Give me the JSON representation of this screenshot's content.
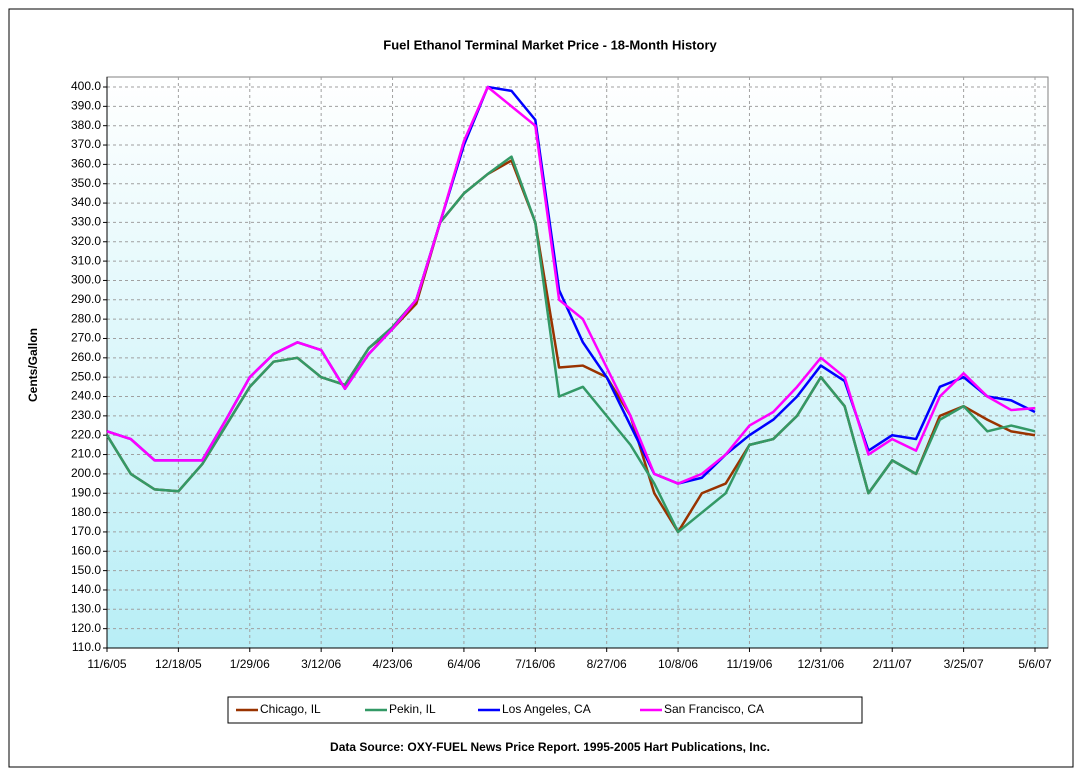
{
  "chart_data": {
    "type": "line",
    "title": "Fuel Ethanol Terminal Market Price - 18-Month History",
    "y_label": "Cents/Gallon",
    "source": "Data Source: OXY-FUEL News Price Report. 1995-2005 Hart Publications, Inc.",
    "categories": [
      "11/6/05",
      null,
      null,
      "12/18/05",
      null,
      null,
      "1/29/06",
      null,
      null,
      "3/12/06",
      null,
      null,
      "4/23/06",
      null,
      null,
      "6/4/06",
      null,
      null,
      "7/16/06",
      null,
      null,
      "8/27/06",
      null,
      null,
      "10/8/06",
      null,
      null,
      "11/19/06",
      null,
      null,
      "12/31/06",
      null,
      null,
      "2/11/07",
      null,
      null,
      "3/25/07",
      null,
      null,
      "5/6/07"
    ],
    "series": [
      {
        "name": "Chicago, IL",
        "color": "#993300",
        "values": [
          220,
          200,
          192,
          191,
          205,
          225,
          245,
          258,
          260,
          250,
          246,
          265,
          275,
          288,
          330,
          345,
          355,
          362,
          330,
          255,
          256,
          250,
          230,
          190,
          170,
          190,
          195,
          215,
          218,
          230,
          250,
          235,
          190,
          207,
          200,
          230,
          235,
          228,
          222,
          220
        ]
      },
      {
        "name": "Pekin, IL",
        "color": "#339966",
        "values": [
          220,
          200,
          192,
          191,
          205,
          225,
          245,
          258,
          260,
          250,
          246,
          265,
          276,
          290,
          330,
          345,
          355,
          364,
          330,
          240,
          245,
          230,
          215,
          195,
          170,
          180,
          190,
          215,
          218,
          230,
          250,
          235,
          190,
          207,
          200,
          228,
          235,
          222,
          225,
          222
        ]
      },
      {
        "name": "Los Angeles, CA",
        "color": "#0000ff",
        "values": [
          222,
          218,
          207,
          207,
          207,
          228,
          250,
          262,
          268,
          264,
          244,
          262,
          275,
          290,
          330,
          370,
          400,
          398,
          383,
          295,
          268,
          250,
          225,
          200,
          195,
          198,
          210,
          220,
          228,
          240,
          256,
          248,
          212,
          220,
          218,
          245,
          250,
          240,
          238,
          232
        ]
      },
      {
        "name": "San Francisco, CA",
        "color": "#ff00ff",
        "values": [
          222,
          218,
          207,
          207,
          207,
          228,
          250,
          262,
          268,
          264,
          244,
          262,
          275,
          290,
          330,
          372,
          400,
          390,
          380,
          290,
          280,
          255,
          230,
          200,
          195,
          200,
          210,
          225,
          232,
          245,
          260,
          250,
          210,
          218,
          212,
          240,
          252,
          240,
          233,
          234
        ]
      }
    ],
    "ylim": [
      110,
      400
    ],
    "yticks": [
      {
        "value": 110,
        "label": "110.0"
      },
      {
        "value": 120,
        "label": "120.0"
      },
      {
        "value": 130,
        "label": "130.0"
      },
      {
        "value": 140,
        "label": "140.0"
      },
      {
        "value": 150,
        "label": "150.0"
      },
      {
        "value": 160,
        "label": "160.0"
      },
      {
        "value": 170,
        "label": "170.0"
      },
      {
        "value": 180,
        "label": "180.0"
      },
      {
        "value": 190,
        "label": "190.0"
      },
      {
        "value": 200,
        "label": "200.0"
      },
      {
        "value": 210,
        "label": "210.0"
      },
      {
        "value": 220,
        "label": "220.0"
      },
      {
        "value": 230,
        "label": "230.0"
      },
      {
        "value": 240,
        "label": "240.0"
      },
      {
        "value": 250,
        "label": "250.0"
      },
      {
        "value": 260,
        "label": "260.0"
      },
      {
        "value": 270,
        "label": "270.0"
      },
      {
        "value": 280,
        "label": "280.0"
      },
      {
        "value": 290,
        "label": "290.0"
      },
      {
        "value": 300,
        "label": "300.0"
      },
      {
        "value": 310,
        "label": "310.0"
      },
      {
        "value": 320,
        "label": "320.0"
      },
      {
        "value": 330,
        "label": "330.0"
      },
      {
        "value": 340,
        "label": "340.0"
      },
      {
        "value": 350,
        "label": "350.0"
      },
      {
        "value": 360,
        "label": "360.0"
      },
      {
        "value": 370,
        "label": "370.0"
      },
      {
        "value": 380,
        "label": "380.0"
      },
      {
        "value": 390,
        "label": "390.0"
      },
      {
        "value": 400,
        "label": "400.0"
      }
    ],
    "grid": true,
    "legend": "bottom"
  }
}
